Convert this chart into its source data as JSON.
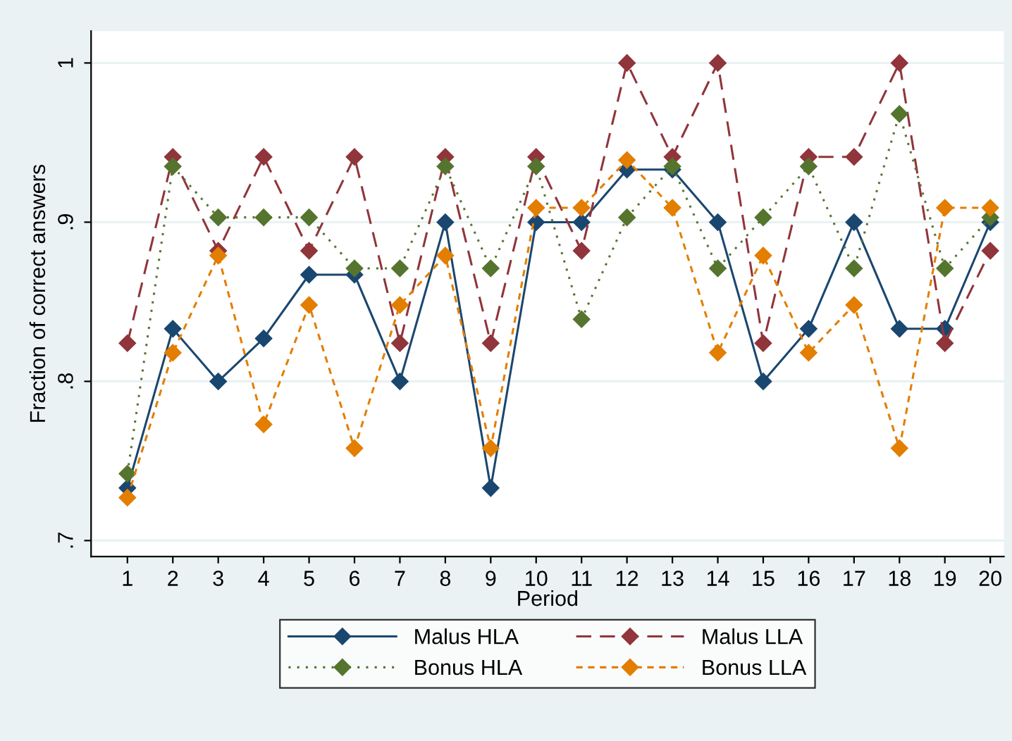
{
  "chart_data": {
    "type": "line",
    "xlabel": "Period",
    "ylabel": "Fraction of correct answers",
    "x": [
      1,
      2,
      3,
      4,
      5,
      6,
      7,
      8,
      9,
      10,
      11,
      12,
      13,
      14,
      15,
      16,
      17,
      18,
      19,
      20
    ],
    "xlim": [
      0.2,
      20.3
    ],
    "xticks": [
      1,
      2,
      3,
      4,
      5,
      6,
      7,
      8,
      9,
      10,
      11,
      12,
      13,
      14,
      15,
      16,
      17,
      18,
      19,
      20
    ],
    "ylim": [
      0.69,
      1.02
    ],
    "yticks": [
      {
        "value": 0.7,
        "label": ".7"
      },
      {
        "value": 0.8,
        "label": ".8"
      },
      {
        "value": 0.9,
        "label": ".9"
      },
      1
    ],
    "grid": "y",
    "legend": "bottom",
    "marker": "diamond",
    "series": [
      {
        "name": "Malus HLA",
        "color": "#1a476f",
        "line_style": "solid",
        "values": [
          0.733,
          0.833,
          0.8,
          0.827,
          0.867,
          0.867,
          0.8,
          0.9,
          0.733,
          0.9,
          0.9,
          0.933,
          0.933,
          0.9,
          0.8,
          0.833,
          0.9,
          0.833,
          0.833,
          0.9
        ]
      },
      {
        "name": "Malus LLA",
        "color": "#90353b",
        "line_style": "dashed",
        "values": [
          0.824,
          0.941,
          0.882,
          0.941,
          0.882,
          0.941,
          0.824,
          0.941,
          0.824,
          0.941,
          0.882,
          1,
          0.941,
          1,
          0.824,
          0.941,
          0.941,
          1,
          0.824,
          0.882
        ]
      },
      {
        "name": "Bonus HLA",
        "color": "#55752f",
        "line_style": "dotted",
        "values": [
          0.742,
          0.935,
          0.903,
          0.903,
          0.903,
          0.871,
          0.871,
          0.935,
          0.871,
          0.935,
          0.839,
          0.903,
          0.935,
          0.871,
          0.903,
          0.935,
          0.871,
          0.968,
          0.871,
          0.903
        ]
      },
      {
        "name": "Bonus LLA",
        "color": "#e37e00",
        "line_style": "dashed",
        "values": [
          0.727,
          0.818,
          0.879,
          0.773,
          0.848,
          0.758,
          0.848,
          0.879,
          0.758,
          0.909,
          0.909,
          0.939,
          0.909,
          0.818,
          0.879,
          0.818,
          0.848,
          0.758,
          0.909,
          0.909
        ]
      }
    ]
  }
}
